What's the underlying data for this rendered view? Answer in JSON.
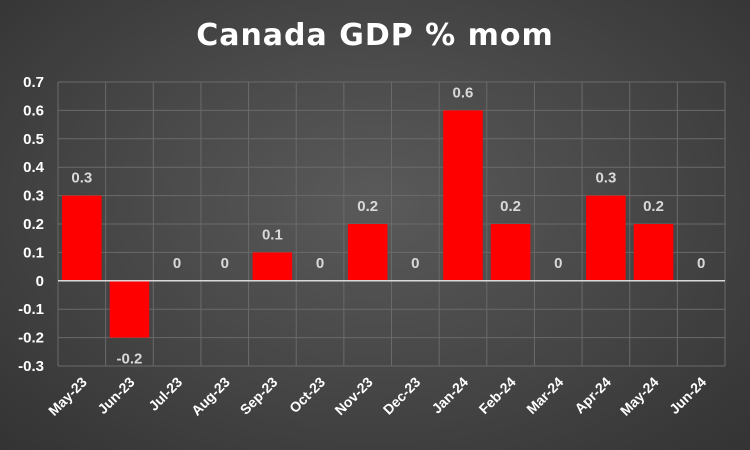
{
  "chart_data": {
    "type": "bar",
    "title": "Canada GDP % mom",
    "xlabel": "",
    "ylabel": "",
    "categories": [
      "May-23",
      "Jun-23",
      "Jul-23",
      "Aug-23",
      "Sep-23",
      "Oct-23",
      "Nov-23",
      "Dec-23",
      "Jan-24",
      "Feb-24",
      "Mar-24",
      "Apr-24",
      "May-24",
      "Jun-24"
    ],
    "values": [
      0.3,
      -0.2,
      0,
      0,
      0.1,
      0,
      0.2,
      0,
      0.6,
      0.2,
      0,
      0.3,
      0.2,
      0
    ],
    "data_labels": [
      "0.3",
      "-0.2",
      "0",
      "0",
      "0.1",
      "0",
      "0.2",
      "0",
      "0.6",
      "0.2",
      "0",
      "0.3",
      "0.2",
      "0"
    ],
    "ylim": [
      -0.3,
      0.7
    ],
    "yticks": [
      0.7,
      0.6,
      0.5,
      0.4,
      0.3,
      0.2,
      0.1,
      0,
      -0.1,
      -0.2,
      -0.3
    ],
    "ytick_labels": [
      "0.7",
      "0.6",
      "0.5",
      "0.4",
      "0.3",
      "0.2",
      "0.1",
      "0",
      "-0.1",
      "-0.2",
      "-0.3"
    ],
    "grid": true,
    "legend": "none",
    "colors": {
      "bar": "#ff0000",
      "grid": "#6a6a6a",
      "axis": "#d9d9d9",
      "text": "#ffffff"
    }
  }
}
